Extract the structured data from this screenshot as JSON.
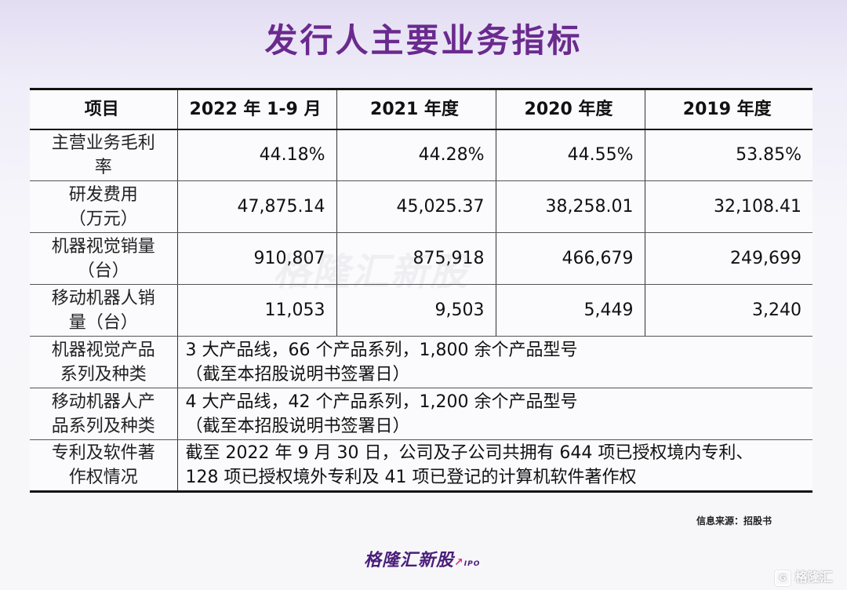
{
  "title": "发行人主要业务指标",
  "table": {
    "headers": [
      "项目",
      "2022 年 1-9 月",
      "2021 年度",
      "2020 年度",
      "2019 年度"
    ],
    "rows": [
      {
        "label": [
          "主营业务毛利",
          "率"
        ],
        "values": [
          "44.18%",
          "44.28%",
          "44.55%",
          "53.85%"
        ]
      },
      {
        "label": [
          "研发费用",
          "（万元）"
        ],
        "values": [
          "47,875.14",
          "45,025.37",
          "38,258.01",
          "32,108.41"
        ]
      },
      {
        "label": [
          "机器视觉销量",
          "（台）"
        ],
        "values": [
          "910,807",
          "875,918",
          "466,679",
          "249,699"
        ]
      },
      {
        "label": [
          "移动机器人销",
          "量（台）"
        ],
        "values": [
          "11,053",
          "9,503",
          "5,449",
          "3,240"
        ]
      }
    ],
    "wide_rows": [
      {
        "label": [
          "机器视觉产品",
          "系列及种类"
        ],
        "text": [
          "3 大产品线，66 个产品系列，1,800 余个产品型号",
          "（截至本招股说明书签署日）"
        ]
      },
      {
        "label": [
          "移动机器人产",
          "品系列及种类"
        ],
        "text": [
          "4 大产品线，42 个产品系列，1,200 余个产品型号",
          "（截至本招股说明书签署日）"
        ]
      },
      {
        "label": [
          "专利及软件著",
          "作权情况"
        ],
        "text": [
          "截至 2022 年 9 月 30 日，公司及子公司共拥有 644 项已授权境内专利、",
          "128 项已授权境外专利及 41 项已登记的计算机软件著作权"
        ]
      }
    ]
  },
  "watermark": "格隆汇新股",
  "source": "信息来源：招股书",
  "brand": {
    "name": "格隆汇新股",
    "sub": "IPO"
  },
  "corner_logo": {
    "icon": "G",
    "text": "格隆汇"
  }
}
